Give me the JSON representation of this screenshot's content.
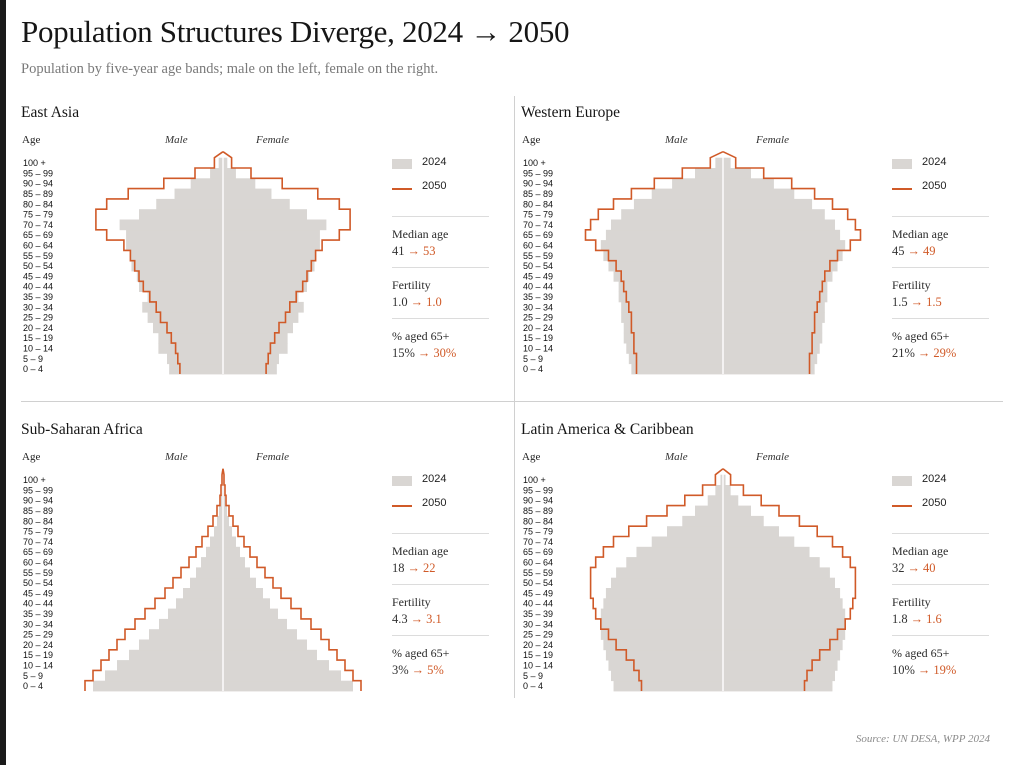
{
  "title": "Population Structures Diverge, 2024 → 2050",
  "subtitle": "Population by five-year age bands; male on the left, female on the right.",
  "source": "Source: UN DESA, WPP 2024",
  "colors": {
    "y2024": "#d9d6d3",
    "y2050": "#d05a28",
    "axis": "#ffffff"
  },
  "labels": {
    "age": "Age",
    "male": "Male",
    "female": "Female",
    "legend_2024": "2024",
    "legend_2050": "2050",
    "median_age": "Median age",
    "fertility": "Fertility",
    "aged65": "% aged 65+",
    "arrow": "→"
  },
  "age_bands": [
    "0 – 4",
    "5 – 9",
    "10 – 14",
    "15 – 19",
    "20 – 24",
    "25 – 29",
    "30 – 34",
    "35 – 39",
    "40 – 44",
    "45 – 49",
    "50 – 54",
    "55 – 59",
    "60 – 64",
    "65 – 69",
    "70 – 74",
    "75 – 79",
    "80 – 84",
    "85 – 89",
    "90 – 94",
    "95 – 99",
    "100 +"
  ],
  "panels": [
    {
      "region": "East Asia",
      "median_age": [
        "41",
        "53"
      ],
      "fertility": [
        "1.0",
        "1.0"
      ],
      "aged65": [
        "15%",
        "30%"
      ]
    },
    {
      "region": "Western Europe",
      "median_age": [
        "45",
        "49"
      ],
      "fertility": [
        "1.5",
        "1.5"
      ],
      "aged65": [
        "21%",
        "29%"
      ]
    },
    {
      "region": "Sub-Saharan Africa",
      "median_age": [
        "18",
        "22"
      ],
      "fertility": [
        "4.3",
        "3.1"
      ],
      "aged65": [
        "3%",
        "5%"
      ]
    },
    {
      "region": "Latin America & Caribbean",
      "median_age": [
        "32",
        "40"
      ],
      "fertility": [
        "1.8",
        "1.6"
      ],
      "aged65": [
        "10%",
        "19%"
      ]
    }
  ],
  "chart_data": [
    {
      "type": "bar",
      "title": "East Asia",
      "categories": [
        "0 – 4",
        "5 – 9",
        "10 – 14",
        "15 – 19",
        "20 – 24",
        "25 – 29",
        "30 – 34",
        "35 – 39",
        "40 – 44",
        "45 – 49",
        "50 – 54",
        "55 – 59",
        "60 – 64",
        "65 – 69",
        "70 – 74",
        "75 – 79",
        "80 – 84",
        "85 – 89",
        "90 – 94",
        "95 – 99",
        "100 +"
      ],
      "xlim": [
        -130,
        130
      ],
      "series": [
        {
          "name": "2024",
          "male": [
            50,
            52,
            60,
            60,
            65,
            70,
            75,
            70,
            78,
            80,
            85,
            86,
            90,
            90,
            96,
            78,
            62,
            45,
            30,
            12,
            4
          ],
          "female": [
            50,
            52,
            60,
            60,
            65,
            70,
            75,
            70,
            78,
            80,
            85,
            86,
            90,
            90,
            96,
            78,
            62,
            45,
            30,
            12,
            4
          ]
        },
        {
          "name": "2050",
          "male": [
            40,
            42,
            44,
            48,
            52,
            58,
            62,
            68,
            74,
            78,
            82,
            86,
            92,
            108,
            118,
            118,
            108,
            88,
            55,
            26,
            8
          ],
          "female": [
            40,
            42,
            44,
            48,
            52,
            58,
            62,
            68,
            74,
            78,
            82,
            86,
            92,
            108,
            118,
            118,
            108,
            88,
            55,
            26,
            8
          ]
        }
      ]
    },
    {
      "type": "bar",
      "title": "Western Europe",
      "categories": [
        "0 – 4",
        "5 – 9",
        "10 – 14",
        "15 – 19",
        "20 – 24",
        "25 – 29",
        "30 – 34",
        "35 – 39",
        "40 – 44",
        "45 – 49",
        "50 – 54",
        "55 – 59",
        "60 – 64",
        "65 – 69",
        "70 – 74",
        "75 – 79",
        "80 – 84",
        "85 – 89",
        "90 – 94",
        "95 – 99",
        "100 +"
      ],
      "xlim": [
        -110,
        110
      ],
      "series": [
        {
          "name": "2024",
          "male": [
            72,
            74,
            76,
            78,
            78,
            80,
            80,
            82,
            82,
            86,
            90,
            94,
            96,
            92,
            88,
            80,
            70,
            56,
            40,
            22,
            6
          ],
          "female": [
            72,
            74,
            76,
            78,
            78,
            80,
            80,
            82,
            82,
            86,
            90,
            94,
            96,
            92,
            88,
            80,
            70,
            56,
            40,
            22,
            6
          ]
        },
        {
          "name": "2050",
          "male": [
            68,
            68,
            70,
            70,
            72,
            72,
            74,
            76,
            78,
            80,
            84,
            90,
            100,
            108,
            104,
            98,
            86,
            72,
            54,
            32,
            10
          ],
          "female": [
            68,
            68,
            70,
            70,
            72,
            72,
            74,
            76,
            78,
            80,
            84,
            90,
            100,
            108,
            104,
            98,
            86,
            72,
            54,
            32,
            10
          ]
        }
      ]
    },
    {
      "type": "bar",
      "title": "Sub-Saharan Africa",
      "categories": [
        "0 – 4",
        "5 – 9",
        "10 – 14",
        "15 – 19",
        "20 – 24",
        "25 – 29",
        "30 – 34",
        "35 – 39",
        "40 – 44",
        "45 – 49",
        "50 – 54",
        "55 – 59",
        "60 – 64",
        "65 – 69",
        "70 – 74",
        "75 – 79",
        "80 – 84",
        "85 – 89",
        "90 – 94",
        "95 – 99",
        "100 +"
      ],
      "xlim": [
        -140,
        140
      ],
      "series": [
        {
          "name": "2024",
          "male": [
            130,
            118,
            106,
            94,
            84,
            74,
            64,
            55,
            47,
            40,
            33,
            27,
            22,
            17,
            13,
            9,
            6,
            4,
            2,
            1,
            1
          ],
          "female": [
            130,
            118,
            106,
            94,
            84,
            74,
            64,
            55,
            47,
            40,
            33,
            27,
            22,
            17,
            13,
            9,
            6,
            4,
            2,
            1,
            1
          ]
        },
        {
          "name": "2050",
          "male": [
            138,
            130,
            122,
            114,
            106,
            98,
            88,
            78,
            68,
            58,
            50,
            42,
            34,
            27,
            21,
            15,
            10,
            6,
            3,
            2,
            1
          ],
          "female": [
            138,
            130,
            122,
            114,
            106,
            98,
            88,
            78,
            68,
            58,
            50,
            42,
            34,
            27,
            21,
            15,
            10,
            6,
            3,
            2,
            1
          ]
        }
      ]
    },
    {
      "type": "bar",
      "title": "Latin America & Caribbean",
      "categories": [
        "0 – 4",
        "5 – 9",
        "10 – 14",
        "15 – 19",
        "20 – 24",
        "25 – 29",
        "30 – 34",
        "35 – 39",
        "40 – 44",
        "45 – 49",
        "50 – 54",
        "55 – 59",
        "60 – 64",
        "65 – 69",
        "70 – 74",
        "75 – 79",
        "80 – 84",
        "85 – 89",
        "90 – 94",
        "95 – 99",
        "100 +"
      ],
      "xlim": [
        -110,
        110
      ],
      "series": [
        {
          "name": "2024",
          "male": [
            86,
            88,
            90,
            92,
            94,
            96,
            96,
            96,
            94,
            92,
            88,
            84,
            76,
            68,
            56,
            44,
            32,
            22,
            12,
            6,
            2
          ],
          "female": [
            86,
            88,
            90,
            92,
            94,
            96,
            96,
            96,
            94,
            92,
            88,
            84,
            76,
            68,
            56,
            44,
            32,
            22,
            12,
            6,
            2
          ]
        },
        {
          "name": "2050",
          "male": [
            64,
            66,
            70,
            76,
            84,
            90,
            96,
            100,
            102,
            104,
            104,
            104,
            100,
            94,
            86,
            74,
            60,
            44,
            30,
            16,
            6
          ],
          "female": [
            64,
            66,
            70,
            76,
            84,
            90,
            96,
            100,
            102,
            104,
            104,
            104,
            100,
            94,
            86,
            74,
            60,
            44,
            30,
            16,
            6
          ]
        }
      ]
    }
  ]
}
